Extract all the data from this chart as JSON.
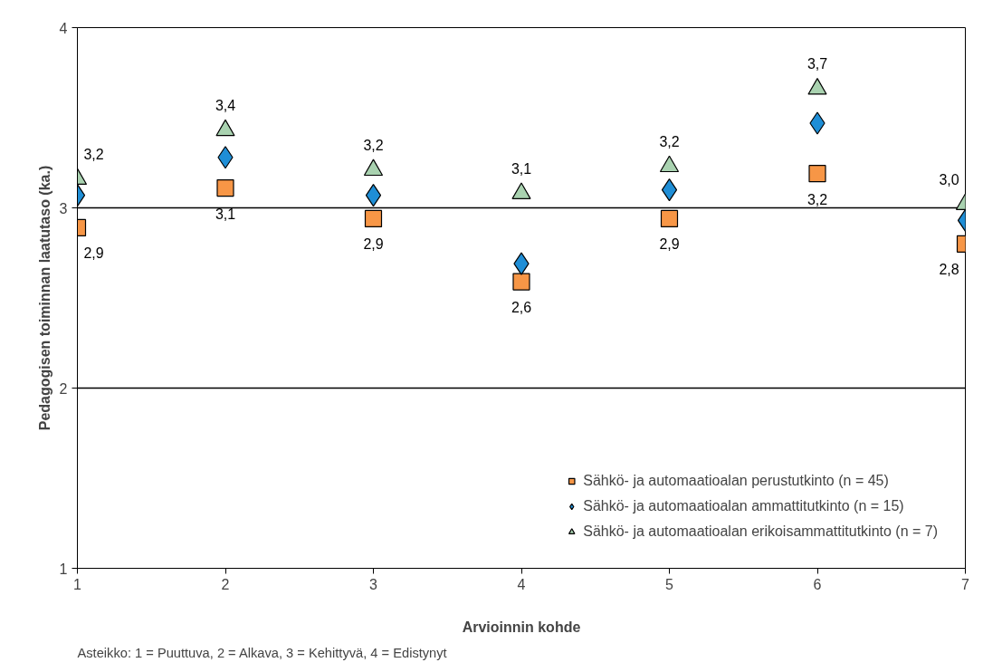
{
  "chart_data": {
    "type": "scatter",
    "ylabel": "Pedagogisen toiminnan laatutaso (ka.)",
    "xlabel": "Arvioinnin kohde",
    "x": [
      1,
      2,
      3,
      4,
      5,
      6,
      7
    ],
    "xlim": [
      1,
      7
    ],
    "xticks": [
      1,
      2,
      3,
      4,
      5,
      6,
      7
    ],
    "ylim": [
      1,
      4
    ],
    "yticks": [
      1,
      2,
      3,
      4
    ],
    "grid": "y",
    "legend": "bottom right",
    "series": [
      {
        "name": "Sähkö- ja automaatioalan perustutkinto (n = 45)",
        "color": "#f79646",
        "marker": "square",
        "values": [
          2.89,
          3.11,
          2.94,
          2.59,
          2.94,
          3.19,
          2.8
        ],
        "value_labels": [
          "2,9",
          "3,1",
          "2,9",
          "2,6",
          "2,9",
          "3,2",
          "2,8"
        ]
      },
      {
        "name": "Sähkö- ja automaatioalan ammattitutkinto (n = 15)",
        "color": "#1f8ed6",
        "marker": "diamond",
        "values": [
          3.07,
          3.28,
          3.07,
          2.69,
          3.1,
          3.47,
          2.93
        ]
      },
      {
        "name": "Sähkö- ja automaatioalan erikoisammattitutkinto (n = 7)",
        "color": "#a9d2b0",
        "marker": "triangle",
        "values": [
          3.16,
          3.43,
          3.21,
          3.08,
          3.23,
          3.66,
          3.02
        ],
        "value_labels": [
          "3,2",
          "3,4",
          "3,2",
          "3,1",
          "3,2",
          "3,7",
          "3,0"
        ]
      }
    ],
    "annotations": [
      "Asteikko: 1 = Puuttuva, 2 = Alkava, 3 = Kehittyvä, 4 = Edistynyt"
    ]
  }
}
